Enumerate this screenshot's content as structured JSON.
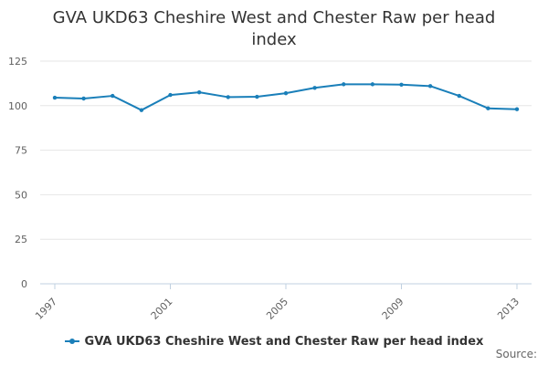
{
  "colors": {
    "series": "#1a7fb9",
    "grid": "#e6e6e6",
    "axis": "#c0d0e0"
  },
  "chart_data": {
    "type": "line",
    "title_lines": [
      "GVA UKD63 Cheshire West and Chester Raw per head",
      "index"
    ],
    "x": [
      1997,
      1998,
      1999,
      2000,
      2001,
      2002,
      2003,
      2004,
      2005,
      2006,
      2007,
      2008,
      2009,
      2010,
      2011,
      2012,
      2013
    ],
    "x_tick_labels": [
      "1997",
      "2001",
      "2005",
      "2009",
      "2013"
    ],
    "y_ticks": [
      0,
      25,
      50,
      75,
      100,
      125
    ],
    "ylim": [
      0,
      125
    ],
    "series": [
      {
        "name": "GVA UKD63 Cheshire West and Chester Raw per head index",
        "values": [
          104.5,
          104.0,
          105.5,
          97.5,
          106.0,
          107.5,
          104.8,
          105.0,
          107.0,
          110.0,
          112.0,
          112.0,
          111.8,
          111.0,
          105.5,
          98.5,
          98.0
        ]
      }
    ],
    "legend_position": "bottom",
    "source_label": "Source:"
  }
}
